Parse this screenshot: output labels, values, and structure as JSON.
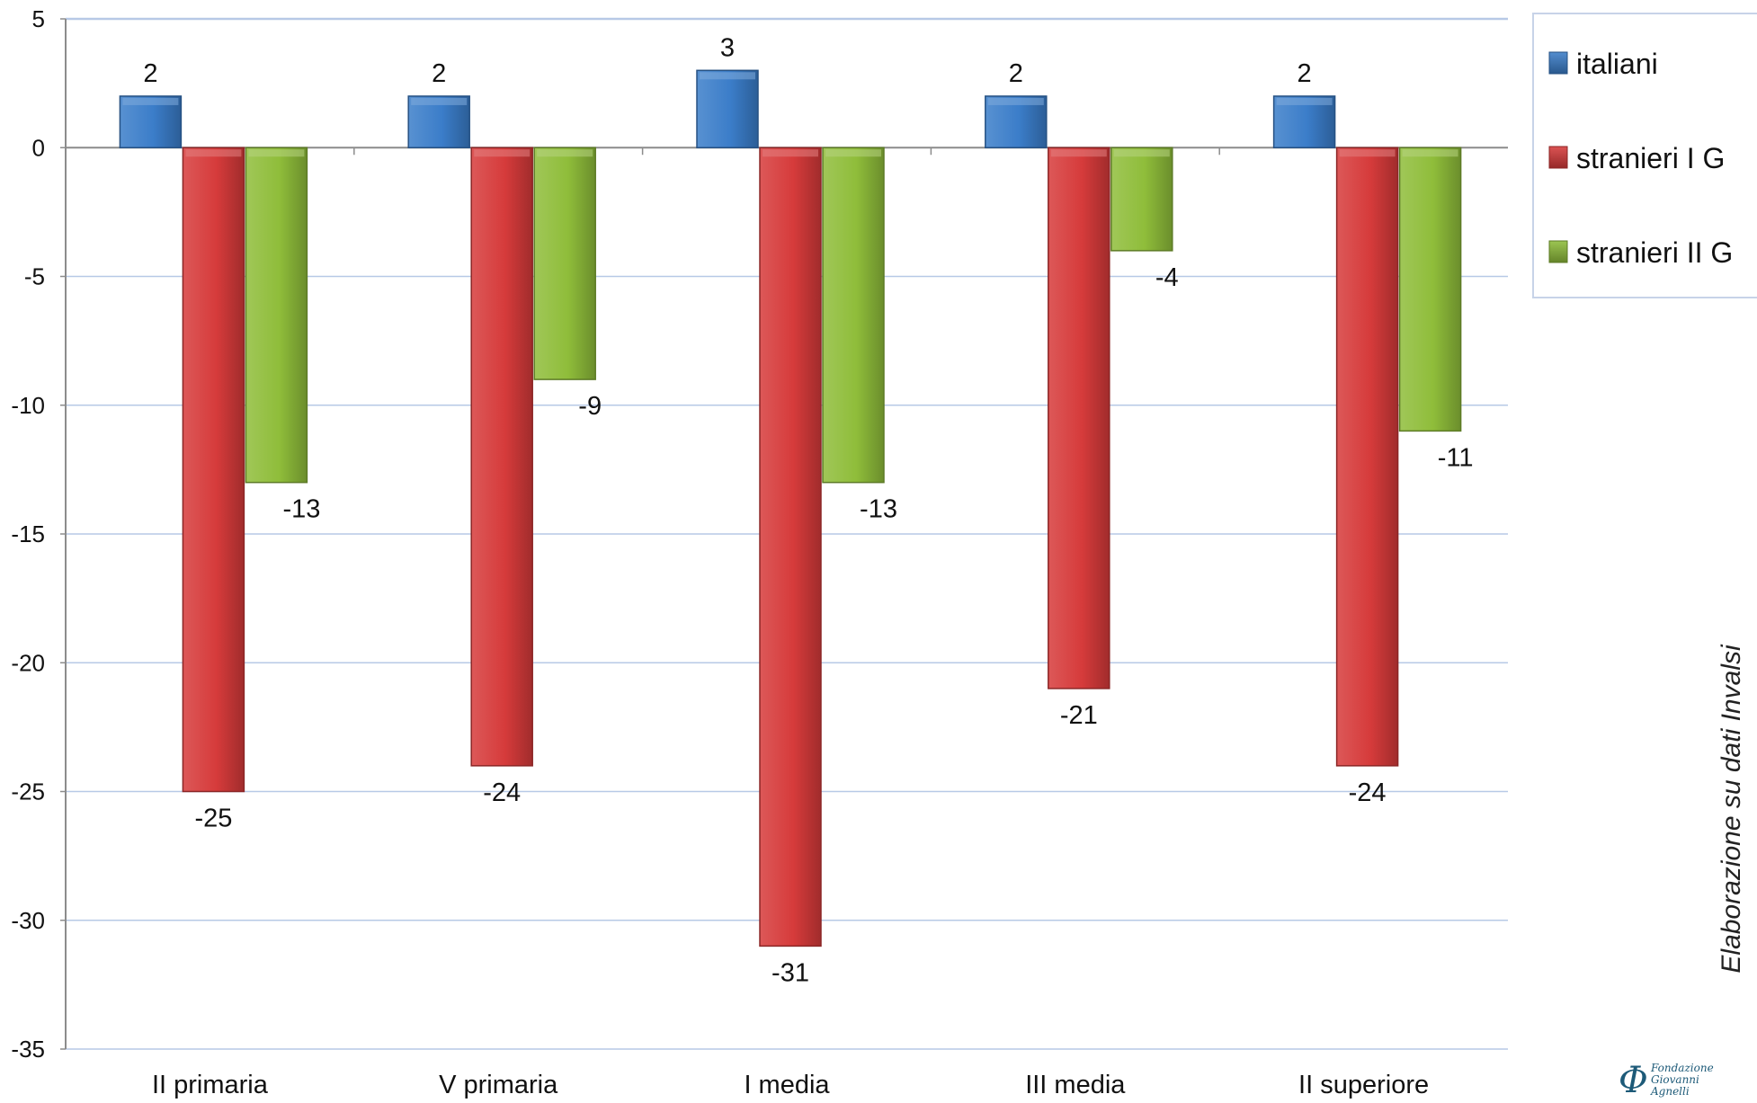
{
  "chart_data": {
    "type": "bar",
    "categories": [
      "II primaria",
      "V primaria",
      "I media",
      "III media",
      "II superiore"
    ],
    "series": [
      {
        "name": "italiani",
        "values": [
          2,
          2,
          3,
          2,
          2
        ],
        "color": "#3b7dc9"
      },
      {
        "name": "stranieri I G",
        "values": [
          -25,
          -24,
          -31,
          -21,
          -24
        ],
        "color": "#d63b3b"
      },
      {
        "name": "stranieri II G",
        "values": [
          -13,
          -9,
          -13,
          -4,
          -11
        ],
        "color": "#8fbd3a"
      }
    ],
    "ylim": [
      -35,
      5
    ],
    "yticks": [
      5,
      0,
      -5,
      -10,
      -15,
      -20,
      -25,
      -30,
      -35
    ],
    "ytick_labels": [
      "5",
      "0",
      "-5",
      "-10",
      "-15",
      "-20",
      "-25",
      "-30",
      "-35"
    ],
    "grid": true,
    "legend_position": "top-right",
    "grid_color": "#b7c9e6"
  },
  "side_note": "Elaborazione su dati Invalsi",
  "logo": {
    "line1": "Fondazione",
    "line2": "Giovanni",
    "line3": "Agnelli",
    "symbol": "Φ"
  }
}
